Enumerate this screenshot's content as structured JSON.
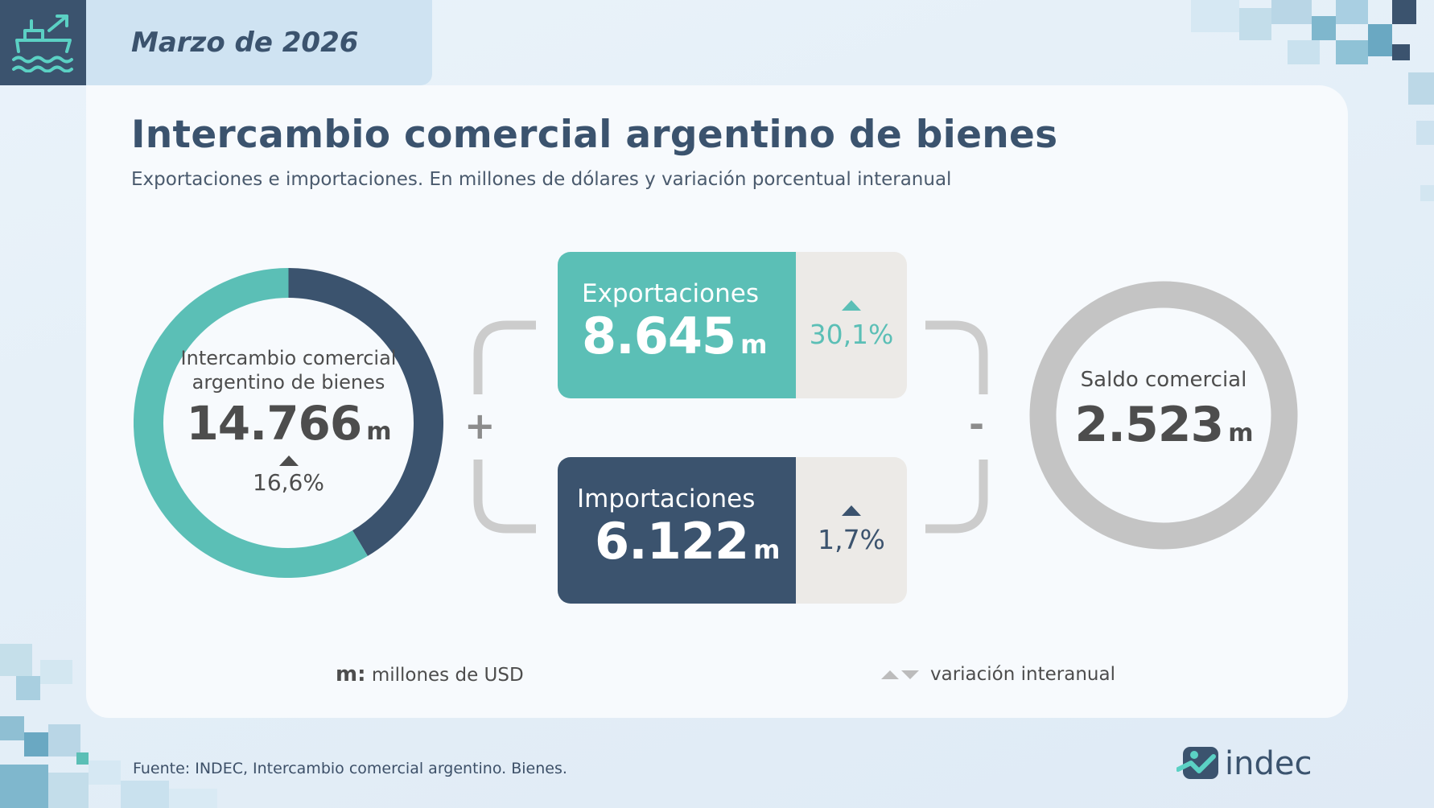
{
  "header": {
    "icon": "ship-export-icon",
    "date": "Marzo de 2026"
  },
  "title": "Intercambio comercial argentino de bienes",
  "subtitle": "Exportaciones e importaciones. En millones de dólares y variación porcentual interanual",
  "chart_data": {
    "type": "pie",
    "subtype": "donut",
    "center_label": "Intercambio comercial argentino de bienes",
    "total": {
      "value": "14.766",
      "unit": "m",
      "variation": "16,6%",
      "direction": "up"
    },
    "slices": [
      {
        "name": "Exportaciones",
        "value": 8645,
        "color": "#5bbfb6"
      },
      {
        "name": "Importaciones",
        "value": 6122,
        "color": "#3b536e"
      }
    ]
  },
  "operators": {
    "plus": "+",
    "minus": "-"
  },
  "exports": {
    "label": "Exportaciones",
    "value": "8.645",
    "unit": "m",
    "variation": "30,1%",
    "direction": "up",
    "color": "#5bbfb6"
  },
  "imports": {
    "label": "Importaciones",
    "value": "6.122",
    "unit": "m",
    "variation": "1,7%",
    "direction": "up",
    "color": "#3b536e"
  },
  "balance": {
    "label": "Saldo comercial",
    "value": "2.523",
    "unit": "m",
    "color": "#c4c4c4"
  },
  "legend": {
    "m_key": "m:",
    "m_text": "millones de USD",
    "var_text": "variación interanual"
  },
  "footer": {
    "source": "Fuente: INDEC, Intercambio comercial argentino. Bienes.",
    "brand": "indec"
  }
}
